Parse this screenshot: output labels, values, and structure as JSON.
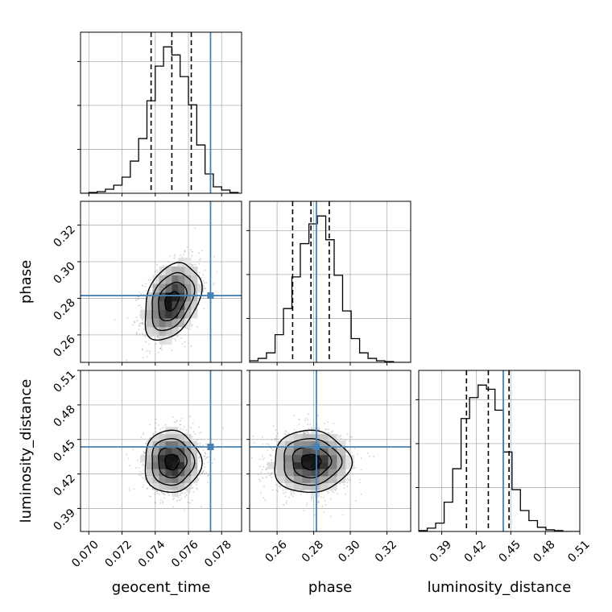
{
  "truth_color": "#4682b4",
  "chart_data": [
    {
      "type": "histogram",
      "panel": "geocent_time-marginal",
      "parameter": "geocent_time",
      "xlabel": "geocent_time",
      "xlim": [
        0.0695,
        0.0792
      ],
      "xticks": [
        0.07,
        0.072,
        0.074,
        0.076,
        0.078
      ],
      "xtick_labels": [
        "0.070",
        "0.072",
        "0.074",
        "0.076",
        "0.078"
      ],
      "quantile_lines": [
        0.07375,
        0.075,
        0.07617
      ],
      "truth": 0.07733,
      "bin_edges": [
        0.0695,
        0.07,
        0.0705,
        0.071,
        0.0715,
        0.072,
        0.0725,
        0.073,
        0.0735,
        0.074,
        0.0745,
        0.075,
        0.0755,
        0.076,
        0.0765,
        0.077,
        0.0775,
        0.078,
        0.0785,
        0.079
      ],
      "counts": [
        0,
        1,
        2,
        5,
        10,
        20,
        40,
        68,
        115,
        158,
        182,
        172,
        145,
        110,
        60,
        24,
        8,
        4,
        1
      ],
      "grid": true
    },
    {
      "type": "histogram",
      "panel": "phase-marginal",
      "parameter": "phase",
      "xlabel": "phase",
      "xlim": [
        0.245,
        0.333
      ],
      "xticks": [
        0.26,
        0.28,
        0.3,
        0.32
      ],
      "xtick_labels": [
        "0.26",
        "0.28",
        "0.30",
        "0.32"
      ],
      "quantile_lines": [
        0.2685,
        0.2785,
        0.2885
      ],
      "truth": 0.2815,
      "bin_edges": [
        0.245,
        0.2496,
        0.2542,
        0.2589,
        0.2635,
        0.2681,
        0.2727,
        0.2774,
        0.282,
        0.2866,
        0.2912,
        0.2958,
        0.3005,
        0.3051,
        0.3097,
        0.3143,
        0.3189,
        0.3236,
        0.3282,
        0.333
      ],
      "counts": [
        2,
        5,
        12,
        35,
        68,
        108,
        150,
        175,
        185,
        155,
        110,
        65,
        30,
        12,
        5,
        2,
        1,
        0,
        0
      ],
      "grid": true
    },
    {
      "type": "histogram",
      "panel": "luminosity_distance-marginal",
      "parameter": "luminosity_distance",
      "xlabel": "luminosity_distance",
      "xlim": [
        0.37,
        0.51
      ],
      "xticks": [
        0.39,
        0.42,
        0.45,
        0.48,
        0.51
      ],
      "xtick_labels": [
        "0.39",
        "0.42",
        "0.45",
        "0.48",
        "0.51"
      ],
      "quantile_lines": [
        0.4115,
        0.4305,
        0.4485
      ],
      "truth": 0.4435,
      "bin_edges": [
        0.37,
        0.3774,
        0.3847,
        0.3921,
        0.3995,
        0.4068,
        0.4142,
        0.4216,
        0.4289,
        0.4363,
        0.4437,
        0.4511,
        0.4584,
        0.4658,
        0.4732,
        0.4805,
        0.4879,
        0.4953,
        0.5026,
        0.51
      ],
      "counts": [
        1,
        4,
        10,
        35,
        75,
        135,
        160,
        175,
        170,
        145,
        95,
        50,
        25,
        13,
        5,
        2,
        1,
        0,
        0
      ],
      "grid": true
    },
    {
      "type": "scatter",
      "panel": "phase-vs-geocent_time",
      "x_param": "geocent_time",
      "y_param": "phase",
      "ylabel": "phase",
      "yticks": [
        0.26,
        0.28,
        0.3,
        0.32
      ],
      "ytick_labels": [
        "0.26",
        "0.28",
        "0.30",
        "0.32"
      ],
      "ylim": [
        0.245,
        0.333
      ],
      "mean": [
        0.075,
        0.2785
      ],
      "std": [
        0.00085,
        0.0105
      ],
      "correlation": 0.35,
      "truth": [
        0.07733,
        0.2815
      ],
      "contour_levels_sigma": [
        0.5,
        1.0,
        1.5,
        2.0
      ],
      "grid": true
    },
    {
      "type": "scatter",
      "panel": "luminosity_distance-vs-geocent_time",
      "x_param": "geocent_time",
      "y_param": "luminosity_distance",
      "ylabel": "luminosity_distance",
      "yticks": [
        0.39,
        0.42,
        0.45,
        0.48,
        0.51
      ],
      "ytick_labels": [
        "0.39",
        "0.42",
        "0.45",
        "0.48",
        "0.51"
      ],
      "ylim": [
        0.37,
        0.51
      ],
      "mean": [
        0.075,
        0.4305
      ],
      "std": [
        0.00085,
        0.0135
      ],
      "correlation": 0.0,
      "truth": [
        0.07733,
        0.4435
      ],
      "contour_levels_sigma": [
        0.5,
        1.0,
        1.5,
        2.0
      ],
      "grid": true
    },
    {
      "type": "scatter",
      "panel": "luminosity_distance-vs-phase",
      "x_param": "phase",
      "y_param": "luminosity_distance",
      "mean": [
        0.2785,
        0.4305
      ],
      "std": [
        0.0105,
        0.0135
      ],
      "correlation": 0.0,
      "truth": [
        0.2815,
        0.4435
      ],
      "contour_levels_sigma": [
        0.5,
        1.0,
        1.5,
        2.0
      ],
      "grid": true
    }
  ]
}
